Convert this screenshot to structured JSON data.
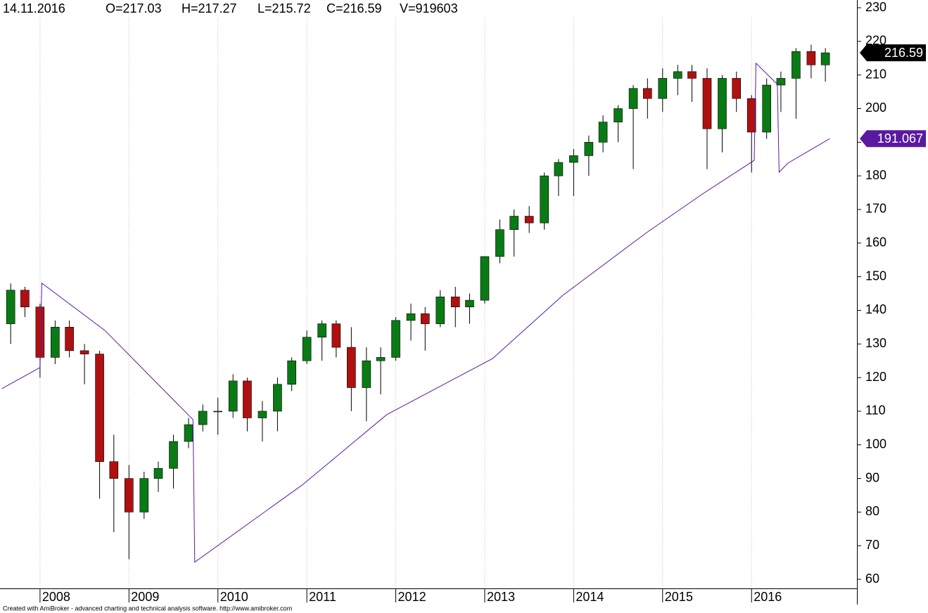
{
  "chart_data": {
    "type": "candlestick",
    "header": [
      "14.11.2016",
      "O=217.03",
      "H=217.27",
      "L=215.72",
      "C=216.59",
      "V=919603"
    ],
    "footer": "Created with AmiBroker - advanced charting and technical analysis software. http://www.amibroker.com",
    "xlim": [
      2007.55,
      2017.185
    ],
    "xticks": [
      2008,
      2009,
      2010,
      2011,
      2012,
      2013,
      2014,
      2015,
      2016
    ],
    "ylim": [
      57.3,
      232.3
    ],
    "yticks": [
      60,
      70,
      80,
      90,
      100,
      110,
      120,
      130,
      140,
      150,
      160,
      170,
      180,
      190,
      200,
      210,
      220,
      230
    ],
    "up_color": "#0a7a14",
    "down_color": "#b01010",
    "x": [
      2007.67,
      2007.83,
      2008.0,
      2008.17,
      2008.33,
      2008.5,
      2008.67,
      2008.83,
      2009.0,
      2009.17,
      2009.33,
      2009.5,
      2009.67,
      2009.83,
      2010.0,
      2010.17,
      2010.33,
      2010.5,
      2010.67,
      2010.83,
      2011.0,
      2011.17,
      2011.33,
      2011.5,
      2011.67,
      2011.83,
      2012.0,
      2012.17,
      2012.33,
      2012.5,
      2012.67,
      2012.83,
      2013.0,
      2013.17,
      2013.33,
      2013.5,
      2013.67,
      2013.83,
      2014.0,
      2014.17,
      2014.33,
      2014.5,
      2014.67,
      2014.83,
      2015.0,
      2015.17,
      2015.33,
      2015.5,
      2015.67,
      2015.83,
      2016.0,
      2016.17,
      2016.33,
      2016.5,
      2016.67,
      2016.83
    ],
    "open": [
      136,
      146,
      141,
      126,
      135,
      128,
      127,
      95,
      90,
      80,
      90,
      93,
      101,
      106,
      110,
      110,
      119,
      108,
      110,
      118,
      125,
      132,
      136,
      129,
      117,
      125,
      126,
      137,
      139,
      136,
      144,
      141,
      143,
      156,
      164,
      168,
      166,
      180,
      184,
      186,
      190,
      196,
      200,
      206,
      203,
      209,
      211,
      209,
      194,
      209,
      203,
      193,
      207,
      209,
      217,
      213
    ],
    "high": [
      148,
      147,
      142,
      137,
      137,
      130,
      128,
      103,
      94,
      92,
      95,
      103,
      108,
      112,
      114,
      121,
      120,
      113,
      120,
      126,
      134,
      137,
      137,
      135,
      129,
      129,
      138,
      142,
      141,
      146,
      147,
      145,
      156,
      167,
      170,
      171,
      181,
      185,
      188,
      192,
      198,
      201,
      207,
      209,
      212,
      213,
      213,
      212,
      210,
      211,
      204,
      209,
      211,
      218,
      219,
      218
    ],
    "low": [
      130,
      138,
      120,
      124,
      126,
      118,
      84,
      74,
      66,
      78,
      86,
      87,
      99,
      104,
      103,
      108,
      104,
      101,
      104,
      116,
      124,
      125,
      126,
      110,
      107,
      115,
      125,
      131,
      128,
      135,
      135,
      136,
      142,
      154,
      156,
      163,
      164,
      174,
      174,
      180,
      187,
      190,
      182,
      197,
      199,
      204,
      202,
      182,
      187,
      199,
      181,
      191,
      199,
      197,
      209,
      208
    ],
    "close": [
      146,
      141,
      126,
      135,
      128,
      127,
      95,
      90,
      80,
      90,
      93,
      101,
      106,
      110,
      110,
      119,
      108,
      110,
      118,
      125,
      132,
      136,
      129,
      117,
      125,
      126,
      137,
      139,
      136,
      144,
      141,
      143,
      156,
      164,
      168,
      166,
      180,
      184,
      186,
      190,
      196,
      200,
      206,
      203,
      209,
      211,
      209,
      194,
      209,
      203,
      193,
      207,
      209,
      217,
      213,
      216.59
    ],
    "series": [
      {
        "color": "#5a1aa0",
        "x": [
          2007.57,
          2008.0,
          2008.02,
          2008.73,
          2009.72,
          2009.74,
          2010.95,
          2011.9,
          2013.09,
          2013.88,
          2014.83,
          2015.46,
          2016.03,
          2016.05,
          2016.29,
          2016.31,
          2016.41,
          2016.88
        ],
        "values": [
          116.7,
          123,
          148.1,
          134,
          107.5,
          65.1,
          88.1,
          109,
          125.7,
          144.5,
          163.3,
          174.8,
          184.6,
          213.5,
          207.2,
          181.1,
          183.8,
          191.067
        ]
      }
    ],
    "markers": [
      {
        "value": 216.59,
        "color": "#000000"
      },
      {
        "value": 191.067,
        "color": "#5a1aa0"
      }
    ]
  }
}
